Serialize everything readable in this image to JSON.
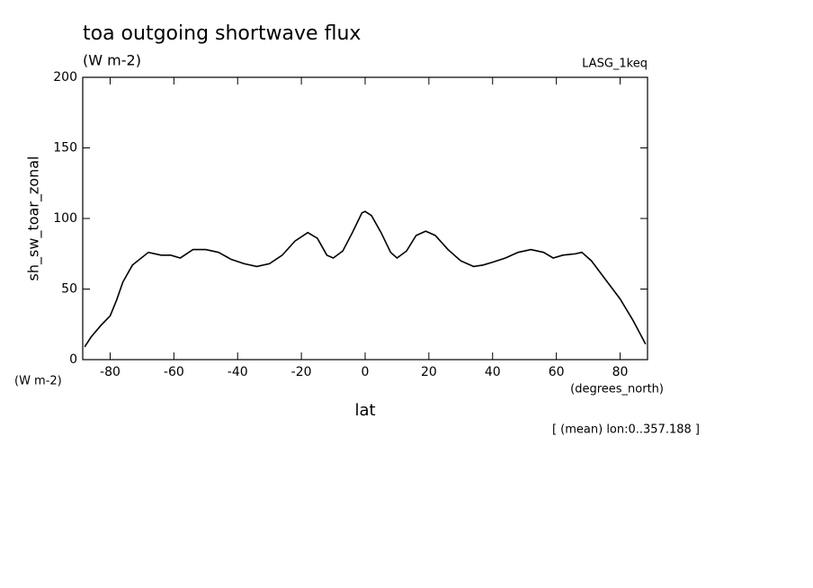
{
  "chart_data": {
    "type": "line",
    "title": "toa outgoing shortwave flux",
    "subtitle": "(W m-2)",
    "case_label": "LASG_1keq",
    "y_label": "sh_sw_toar_zonal",
    "y_units": "(W m-2)",
    "x_label": "lat",
    "x_units": "(degrees_north)",
    "annotation": "[ (mean) lon:0..357.188 ]",
    "x": [
      -88,
      -86,
      -83,
      -80,
      -78,
      -76,
      -73,
      -68,
      -64,
      -61,
      -58,
      -54,
      -50,
      -46,
      -42,
      -38,
      -34,
      -30,
      -26,
      -22,
      -18,
      -15,
      -12,
      -10,
      -7,
      -4,
      -1,
      0,
      2,
      5,
      8,
      10,
      13,
      16,
      19,
      22,
      26,
      30,
      34,
      37,
      40,
      44,
      48,
      52,
      56,
      59,
      62,
      66,
      68,
      71,
      74,
      77,
      80,
      84,
      88
    ],
    "series": [
      {
        "name": "sh_sw_toar_zonal",
        "color": "#000000",
        "values": [
          9,
          16,
          24,
          31,
          42,
          55,
          67,
          76,
          74,
          74,
          72,
          78,
          78,
          76,
          71,
          68,
          66,
          68,
          74,
          84,
          90,
          86,
          74,
          72,
          77,
          90,
          104,
          105,
          102,
          90,
          76,
          72,
          77,
          88,
          91,
          88,
          78,
          70,
          66,
          67,
          69,
          72,
          76,
          78,
          76,
          72,
          74,
          75,
          76,
          70,
          61,
          52,
          43,
          28,
          11
        ]
      }
    ],
    "xlim": [
      -88.6,
      88.6
    ],
    "ylim": [
      0,
      200
    ],
    "xticks": [
      -80,
      -60,
      -40,
      -20,
      0,
      20,
      40,
      60,
      80
    ],
    "yticks": [
      0,
      50,
      100,
      150,
      200
    ]
  }
}
